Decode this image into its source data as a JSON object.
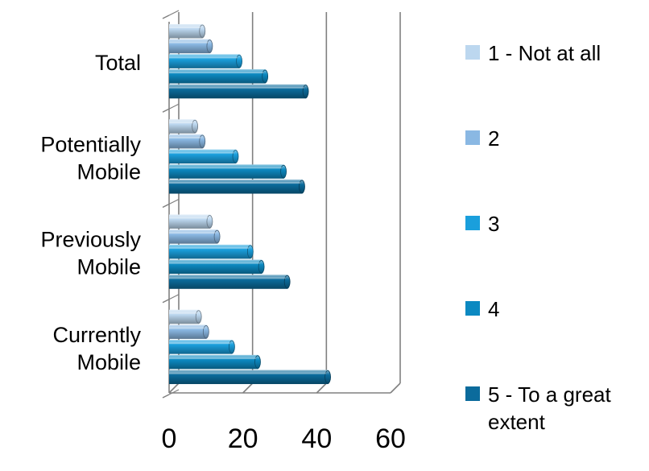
{
  "chart_data": {
    "type": "bar",
    "orientation": "horizontal",
    "style": "3d-cylinder",
    "categories": [
      "Total",
      "Potentially Mobile",
      "Previously Mobile",
      "Currently Mobile"
    ],
    "series": [
      {
        "name": "1 - Not at all",
        "color": "#bcd7ef",
        "values": [
          9,
          7,
          11,
          8
        ]
      },
      {
        "name": "2",
        "color": "#8ab8e3",
        "values": [
          11,
          9,
          13,
          10
        ]
      },
      {
        "name": "3",
        "color": "#1a9fdc",
        "values": [
          19,
          18,
          22,
          17
        ]
      },
      {
        "name": "4",
        "color": "#0c89c1",
        "values": [
          26,
          31,
          25,
          24
        ]
      },
      {
        "name": "5 - To a great extent",
        "color": "#0b6b9c",
        "values": [
          37,
          36,
          32,
          43
        ]
      }
    ],
    "xlim": [
      0,
      60
    ],
    "xticks": [
      0,
      20,
      40,
      60
    ],
    "grid": true,
    "legend_position": "right",
    "title": "",
    "xlabel": "",
    "ylabel": ""
  }
}
